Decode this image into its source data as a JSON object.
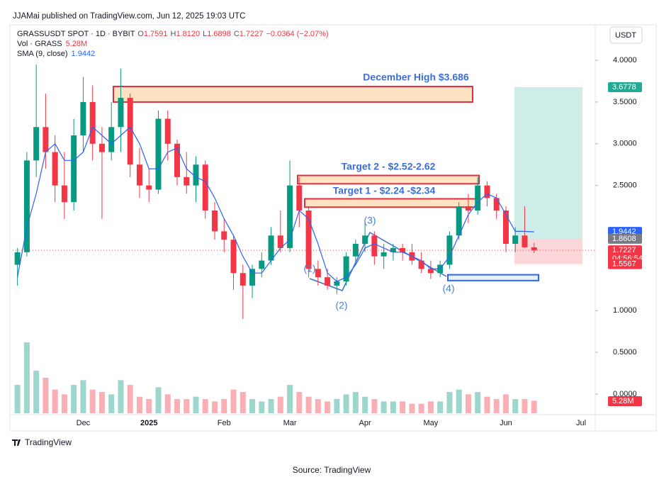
{
  "header": {
    "attribution": "JJAMai published on TradingView.com, Jun 12, 2025 19:03 UTC",
    "symbol": "GRASSUSDT SPOT · 1D · BYBIT",
    "ohlc": [
      {
        "key": "O",
        "text": "1.7591"
      },
      {
        "key": "H",
        "text": "1.8120"
      },
      {
        "key": "L",
        "text": "1.6898"
      },
      {
        "key": "C",
        "text": "1.7227"
      }
    ],
    "change": "−0.0364 (−2.07%)",
    "vol_label": "Vol · GRASS",
    "vol_value": "5.28M",
    "sma_label": "SMA (9, close)",
    "sma_value": "1.9442",
    "currency": "USDT"
  },
  "chart_data": {
    "type": "candlestick",
    "categories": [
      null,
      null,
      null,
      null,
      null,
      null,
      null,
      "Dec",
      null,
      null,
      null,
      null,
      null,
      null,
      "2025",
      null,
      null,
      null,
      null,
      null,
      null,
      null,
      "Feb",
      null,
      null,
      null,
      null,
      null,
      null,
      "Mar",
      null,
      null,
      null,
      null,
      null,
      null,
      null,
      "Apr",
      null,
      null,
      null,
      null,
      null,
      null,
      "May",
      null,
      null,
      null,
      null,
      null,
      null,
      null,
      "Jun",
      null,
      null,
      null,
      null,
      null,
      null,
      null,
      "Jul"
    ],
    "open": [
      1.55,
      1.7,
      2.8,
      3.2,
      2.9,
      2.5,
      2.3,
      3.1,
      3.5,
      3.0,
      2.9,
      3.2,
      3.55,
      2.75,
      2.5,
      2.45,
      3.3,
      3.0,
      2.6,
      2.5,
      2.75,
      2.2,
      1.95,
      1.85,
      1.45,
      1.3,
      1.5,
      1.6,
      1.9,
      1.75,
      2.5,
      2.2,
      1.5,
      1.4,
      1.3,
      1.35,
      1.65,
      1.8,
      1.9,
      1.65,
      1.7,
      1.75,
      1.7,
      1.6,
      1.5,
      1.45,
      1.55,
      1.9,
      2.25,
      2.2,
      2.5,
      2.35,
      2.2,
      1.8,
      1.9,
      1.7591,
      null,
      null,
      null,
      null,
      null
    ],
    "high": [
      1.75,
      2.9,
      3.95,
      3.6,
      3.1,
      2.9,
      3.3,
      3.8,
      3.7,
      3.2,
      3.5,
      3.9,
      3.6,
      2.95,
      2.7,
      3.4,
      3.4,
      3.05,
      2.9,
      2.85,
      2.8,
      2.3,
      2.1,
      1.9,
      1.55,
      1.55,
      1.7,
      2.0,
      2.2,
      2.8,
      2.6,
      2.25,
      1.6,
      1.5,
      1.4,
      1.7,
      1.85,
      2.05,
      1.95,
      1.8,
      1.8,
      1.8,
      1.8,
      1.7,
      1.6,
      1.6,
      1.95,
      2.3,
      2.4,
      2.6,
      2.55,
      2.4,
      2.25,
      2.0,
      2.25,
      1.812,
      null,
      null,
      null,
      null,
      null
    ],
    "low": [
      1.3,
      1.65,
      2.6,
      2.7,
      2.3,
      2.1,
      2.2,
      2.9,
      2.8,
      2.1,
      2.8,
      2.9,
      2.6,
      2.35,
      2.3,
      2.4,
      2.8,
      2.5,
      2.4,
      2.3,
      2.1,
      1.85,
      1.7,
      1.25,
      0.9,
      1.15,
      1.4,
      1.55,
      1.7,
      1.7,
      2.0,
      1.4,
      1.3,
      1.25,
      1.2,
      1.3,
      1.55,
      1.7,
      1.55,
      1.5,
      1.6,
      1.6,
      1.55,
      1.45,
      1.38,
      1.4,
      1.5,
      1.85,
      2.05,
      2.15,
      2.25,
      2.1,
      1.7,
      1.7,
      1.75,
      1.6898,
      null,
      null,
      null,
      null,
      null
    ],
    "close": [
      1.7,
      2.8,
      3.2,
      2.9,
      2.5,
      2.3,
      3.1,
      3.5,
      3.0,
      2.9,
      3.2,
      3.55,
      2.75,
      2.5,
      2.45,
      3.3,
      3.0,
      2.6,
      2.5,
      2.75,
      2.2,
      1.95,
      1.85,
      1.45,
      1.3,
      1.5,
      1.6,
      1.9,
      1.75,
      2.5,
      2.2,
      1.5,
      1.4,
      1.3,
      1.35,
      1.65,
      1.8,
      1.9,
      1.65,
      1.7,
      1.75,
      1.7,
      1.6,
      1.5,
      1.45,
      1.55,
      1.9,
      2.25,
      2.2,
      2.5,
      2.35,
      2.2,
      1.8,
      1.9,
      1.7591,
      1.7227,
      null,
      null,
      null,
      null,
      null
    ],
    "sma": [
      1.4,
      2.0,
      2.4,
      2.9,
      3.0,
      2.8,
      2.8,
      2.9,
      3.2,
      3.1,
      3.0,
      3.1,
      3.2,
      3.0,
      2.7,
      2.7,
      2.9,
      2.95,
      2.7,
      2.6,
      2.55,
      2.35,
      2.1,
      1.9,
      1.65,
      1.45,
      1.45,
      1.6,
      1.75,
      1.85,
      2.2,
      2.1,
      1.8,
      1.45,
      1.35,
      1.4,
      1.55,
      1.75,
      1.8,
      1.75,
      1.7,
      1.7,
      1.65,
      1.6,
      1.5,
      1.5,
      1.65,
      1.9,
      2.15,
      2.3,
      2.4,
      2.35,
      2.15,
      1.95,
      1.95,
      1.9442,
      null,
      null,
      null,
      null,
      null
    ],
    "volume": [
      12,
      30,
      18,
      15,
      10,
      8,
      12,
      14,
      10,
      9,
      8,
      14,
      12,
      7,
      6,
      11,
      8,
      6,
      6,
      7,
      6,
      5,
      6,
      10,
      9,
      6,
      5,
      6,
      7,
      12,
      9,
      7,
      6,
      5,
      6,
      8,
      9,
      7,
      6,
      5,
      5,
      5,
      4,
      4,
      5,
      5,
      9,
      10,
      8,
      9,
      7,
      6,
      8,
      6,
      6,
      5.28,
      null,
      null,
      null,
      null,
      null
    ],
    "volume_last_label": "5.28M",
    "up_color": "#089981",
    "down_color": "#f23645",
    "sma_color": "#2962ff",
    "ylim": [
      -0.23,
      4.4
    ],
    "yticks": [
      {
        "value": 4,
        "label": "4.0000"
      },
      {
        "value": 3.5,
        "label": "3.5000"
      },
      {
        "value": 3,
        "label": "3.0000"
      },
      {
        "value": 2.5,
        "label": "2.5000"
      },
      {
        "value": 1,
        "label": "1.0000"
      },
      {
        "value": 0.5,
        "label": "0.5000"
      },
      {
        "value": 0,
        "label": "0.0000"
      }
    ],
    "zones": [
      {
        "label": "December High $3.686",
        "low": 3.5,
        "high": 3.686
      },
      {
        "label": "Target 2 - $2.52-2.62",
        "low": 2.52,
        "high": 2.62
      },
      {
        "label": "Target 1 - $2.24 -$2.34",
        "low": 2.24,
        "high": 2.34
      },
      {
        "low": 1.36,
        "high": 1.43
      }
    ],
    "waves": [
      "(1)",
      "(2)",
      "(3)",
      "(4)"
    ],
    "position": {
      "target": 3.6778,
      "entry": 1.8608,
      "stop": 1.5567
    },
    "badges": [
      {
        "value": 3.6778,
        "color": "#22ab94"
      },
      {
        "value": 1.9442,
        "color": "#2962ff"
      },
      {
        "value": 1.8608,
        "color": "#787b86"
      },
      {
        "value": 1.7227,
        "color": "#f23645",
        "note": "04:56:54"
      },
      {
        "value": 1.5567,
        "color": "#f23645"
      }
    ]
  },
  "footer": {
    "brand": "TradingView",
    "source": "Source: TradingView"
  }
}
